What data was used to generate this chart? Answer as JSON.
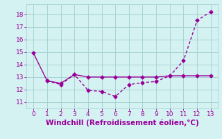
{
  "line1_x": [
    0,
    1,
    2,
    3,
    4,
    5,
    6,
    7,
    8,
    9,
    10,
    11,
    12,
    13
  ],
  "line1_y": [
    14.9,
    12.7,
    12.5,
    13.2,
    13.0,
    13.0,
    13.0,
    13.0,
    13.0,
    13.0,
    13.1,
    13.1,
    13.1,
    13.1
  ],
  "line2_x": [
    1,
    2,
    3,
    4,
    5,
    6,
    7,
    8,
    9,
    10,
    11,
    12,
    13
  ],
  "line2_y": [
    12.7,
    12.4,
    13.2,
    11.95,
    11.85,
    11.45,
    12.4,
    12.55,
    12.65,
    13.1,
    14.3,
    17.5,
    18.2
  ],
  "line_color": "#990099",
  "bg_color": "#d5f2f2",
  "grid_color": "#aad4d4",
  "xlabel": "Windchill (Refroidissement éolien,°C)",
  "xlim": [
    -0.5,
    13.5
  ],
  "ylim": [
    10.5,
    18.8
  ],
  "yticks": [
    11,
    12,
    13,
    14,
    15,
    16,
    17,
    18
  ],
  "xticks": [
    0,
    1,
    2,
    3,
    4,
    5,
    6,
    7,
    8,
    9,
    10,
    11,
    12,
    13
  ],
  "marker": "D",
  "markersize": 2.5,
  "linewidth": 1.0,
  "xlabel_fontsize": 7.5,
  "tick_fontsize": 6.5
}
